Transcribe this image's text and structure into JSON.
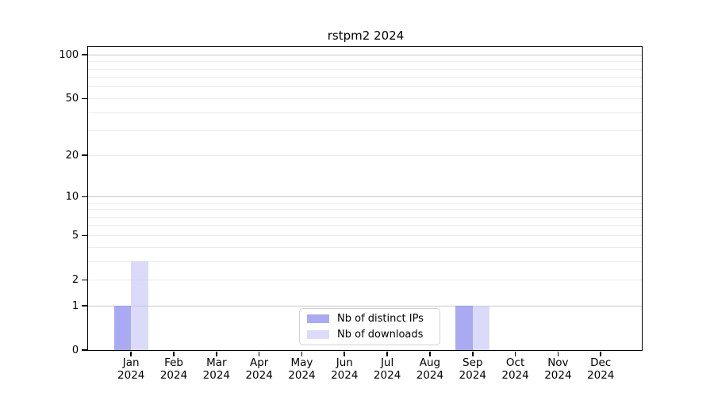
{
  "figure": {
    "title": "rstpm2 2024"
  },
  "colors": {
    "bar_distinct_ips": "rgba(146,146,240,0.78)",
    "bar_downloads": "rgba(197,197,246,0.62)",
    "swatch_distinct_ips": "#aaaaf2",
    "swatch_downloads": "#dcdcf8",
    "grid_major": "#c8c8c8",
    "grid_minor": "#ececec",
    "spine": "#000000",
    "legend_border": "#d2d2d2"
  },
  "legend": {
    "items": [
      {
        "label": "Nb of distinct IPs"
      },
      {
        "label": "Nb of downloads"
      }
    ]
  },
  "chart_data": {
    "type": "bar",
    "title": "rstpm2 2024",
    "categories": [
      "Jan 2024",
      "Feb 2024",
      "Mar 2024",
      "Apr 2024",
      "May 2024",
      "Jun 2024",
      "Jul 2024",
      "Aug 2024",
      "Sep 2024",
      "Oct 2024",
      "Nov 2024",
      "Dec 2024"
    ],
    "series": [
      {
        "name": "Nb of distinct IPs",
        "values": [
          1,
          0,
          0,
          0,
          0,
          0,
          0,
          0,
          1,
          0,
          0,
          0
        ]
      },
      {
        "name": "Nb of downloads",
        "values": [
          3,
          0,
          0,
          0,
          0,
          0,
          0,
          0,
          1,
          0,
          0,
          0
        ]
      }
    ],
    "xlabel": "",
    "ylabel": "",
    "yscale": "log1p",
    "ylim": [
      0,
      113
    ],
    "y_tick_values": [
      0,
      1,
      2,
      5,
      10,
      20,
      50,
      100
    ],
    "y_gridline_values": [
      1,
      2,
      3,
      4,
      5,
      6,
      7,
      8,
      9,
      10,
      20,
      30,
      40,
      50,
      60,
      70,
      80,
      90,
      100
    ],
    "y_major_gridline_values": [
      1,
      10,
      100
    ],
    "grid": true,
    "legend_position": "lower center"
  }
}
